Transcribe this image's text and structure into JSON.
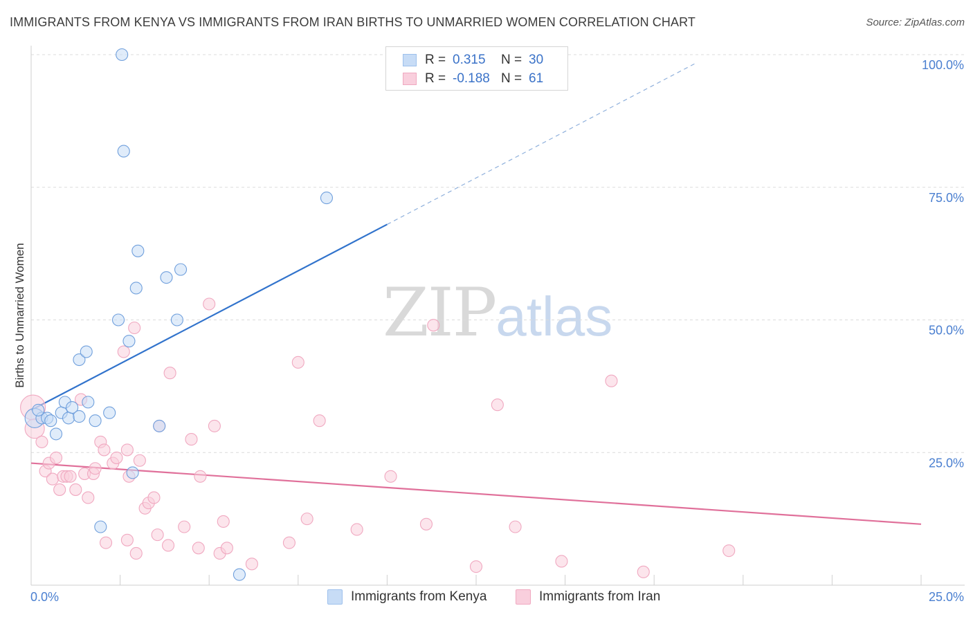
{
  "title": "IMMIGRANTS FROM KENYA VS IMMIGRANTS FROM IRAN BIRTHS TO UNMARRIED WOMEN CORRELATION CHART",
  "source": "Source: ZipAtlas.com",
  "watermark": {
    "zip": "ZIP",
    "atlas": "atlas"
  },
  "legend": {
    "r_label": "R =",
    "n_label": "N =",
    "kenya": {
      "r": "0.315",
      "n": "30",
      "color": "#9dc0ec",
      "fill": "#c7dcf6"
    },
    "iran": {
      "r": "-0.188",
      "n": "61",
      "color": "#f0a8c0",
      "fill": "#f9cfdd"
    }
  },
  "bottom_legend": {
    "kenya_label": "Immigrants from Kenya",
    "iran_label": "Immigrants from Iran"
  },
  "colors": {
    "kenya_line": "#3173cc",
    "iran_line": "#e0709a",
    "axis_text": "#4a7fd0"
  },
  "chart_data": {
    "type": "scatter",
    "title": "IMMIGRANTS FROM KENYA VS IMMIGRANTS FROM IRAN BIRTHS TO UNMARRIED WOMEN CORRELATION CHART",
    "xlabel": "",
    "ylabel": "Births to Unmarried Women",
    "xlim": [
      0,
      25
    ],
    "ylim": [
      0,
      102
    ],
    "x_tick_labels": [
      {
        "value": 0,
        "label": "0.0%"
      },
      {
        "value": 25,
        "label": "25.0%"
      }
    ],
    "y_tick_labels": [
      {
        "value": 25,
        "label": "25.0%"
      },
      {
        "value": 50,
        "label": "50.0%"
      },
      {
        "value": 75,
        "label": "75.0%"
      },
      {
        "value": 100,
        "label": "100.0%"
      }
    ],
    "series": [
      {
        "name": "Immigrants from Kenya",
        "points": [
          [
            0.1,
            31.5,
            "L"
          ],
          [
            0.3,
            31.5
          ],
          [
            0.45,
            31.5
          ],
          [
            0.55,
            31.0
          ],
          [
            0.7,
            28.5
          ],
          [
            0.85,
            32.5
          ],
          [
            0.95,
            34.5
          ],
          [
            1.05,
            31.5
          ],
          [
            1.15,
            33.5
          ],
          [
            1.35,
            31.8
          ],
          [
            1.6,
            34.5
          ],
          [
            1.8,
            31.0
          ],
          [
            2.2,
            32.5
          ],
          [
            1.35,
            42.5
          ],
          [
            1.55,
            44.0
          ],
          [
            2.45,
            50.0
          ],
          [
            2.75,
            46.0
          ],
          [
            2.95,
            56.0
          ],
          [
            3.0,
            63.0
          ],
          [
            3.8,
            58.0
          ],
          [
            4.1,
            50.0
          ],
          [
            4.2,
            59.5
          ],
          [
            2.55,
            100
          ],
          [
            2.6,
            81.8
          ],
          [
            8.3,
            73.0
          ],
          [
            1.95,
            11.0
          ],
          [
            2.85,
            21.2
          ],
          [
            3.6,
            30.0
          ],
          [
            5.85,
            2.0
          ],
          [
            0.2,
            33.0
          ]
        ],
        "trend": {
          "x0": 0,
          "y0": 33.0,
          "x1": 10.0,
          "y1": 68.0,
          "x_dash_end": 18.7,
          "y_dash_end": 98.5
        }
      },
      {
        "name": "Immigrants from Iran",
        "points": [
          [
            0.05,
            33.5,
            "XL"
          ],
          [
            0.1,
            29.5,
            "L"
          ],
          [
            0.3,
            27.0
          ],
          [
            0.4,
            21.5
          ],
          [
            0.5,
            23.0
          ],
          [
            0.6,
            20.0
          ],
          [
            0.7,
            24.0
          ],
          [
            0.8,
            18.0
          ],
          [
            0.9,
            20.5
          ],
          [
            1.0,
            20.5
          ],
          [
            1.1,
            20.5
          ],
          [
            1.25,
            18.0
          ],
          [
            1.4,
            35.0
          ],
          [
            1.5,
            21.0
          ],
          [
            1.6,
            16.5
          ],
          [
            1.75,
            21.0
          ],
          [
            1.8,
            22.0
          ],
          [
            1.95,
            27.0
          ],
          [
            2.05,
            25.5
          ],
          [
            2.1,
            8.0
          ],
          [
            2.3,
            23.0
          ],
          [
            2.4,
            24.0
          ],
          [
            2.6,
            44.0
          ],
          [
            2.7,
            25.5
          ],
          [
            2.7,
            8.5
          ],
          [
            2.75,
            20.5
          ],
          [
            2.9,
            48.5
          ],
          [
            2.95,
            6.0
          ],
          [
            3.05,
            23.5
          ],
          [
            3.2,
            14.5
          ],
          [
            3.3,
            15.5
          ],
          [
            3.45,
            16.5
          ],
          [
            3.55,
            9.5
          ],
          [
            3.6,
            30.0
          ],
          [
            3.85,
            7.5
          ],
          [
            3.9,
            40.0
          ],
          [
            4.3,
            11.0
          ],
          [
            4.5,
            27.5
          ],
          [
            4.7,
            7.0
          ],
          [
            4.75,
            20.5
          ],
          [
            5.0,
            53.0
          ],
          [
            5.15,
            30.0
          ],
          [
            5.3,
            6.0
          ],
          [
            5.4,
            12.0
          ],
          [
            5.5,
            7.0
          ],
          [
            6.2,
            4.0
          ],
          [
            7.25,
            8.0
          ],
          [
            7.5,
            42.0
          ],
          [
            7.75,
            12.5
          ],
          [
            8.1,
            31.0
          ],
          [
            9.15,
            10.5
          ],
          [
            10.1,
            20.5
          ],
          [
            11.1,
            11.5
          ],
          [
            11.3,
            49.0
          ],
          [
            12.5,
            3.5
          ],
          [
            13.1,
            34.0
          ],
          [
            13.6,
            11.0
          ],
          [
            14.9,
            4.5
          ],
          [
            16.3,
            38.5
          ],
          [
            17.2,
            2.5
          ],
          [
            19.6,
            6.5
          ]
        ],
        "trend": {
          "x0": 0,
          "y0": 23.0,
          "x1": 25,
          "y1": 11.5
        }
      }
    ]
  }
}
